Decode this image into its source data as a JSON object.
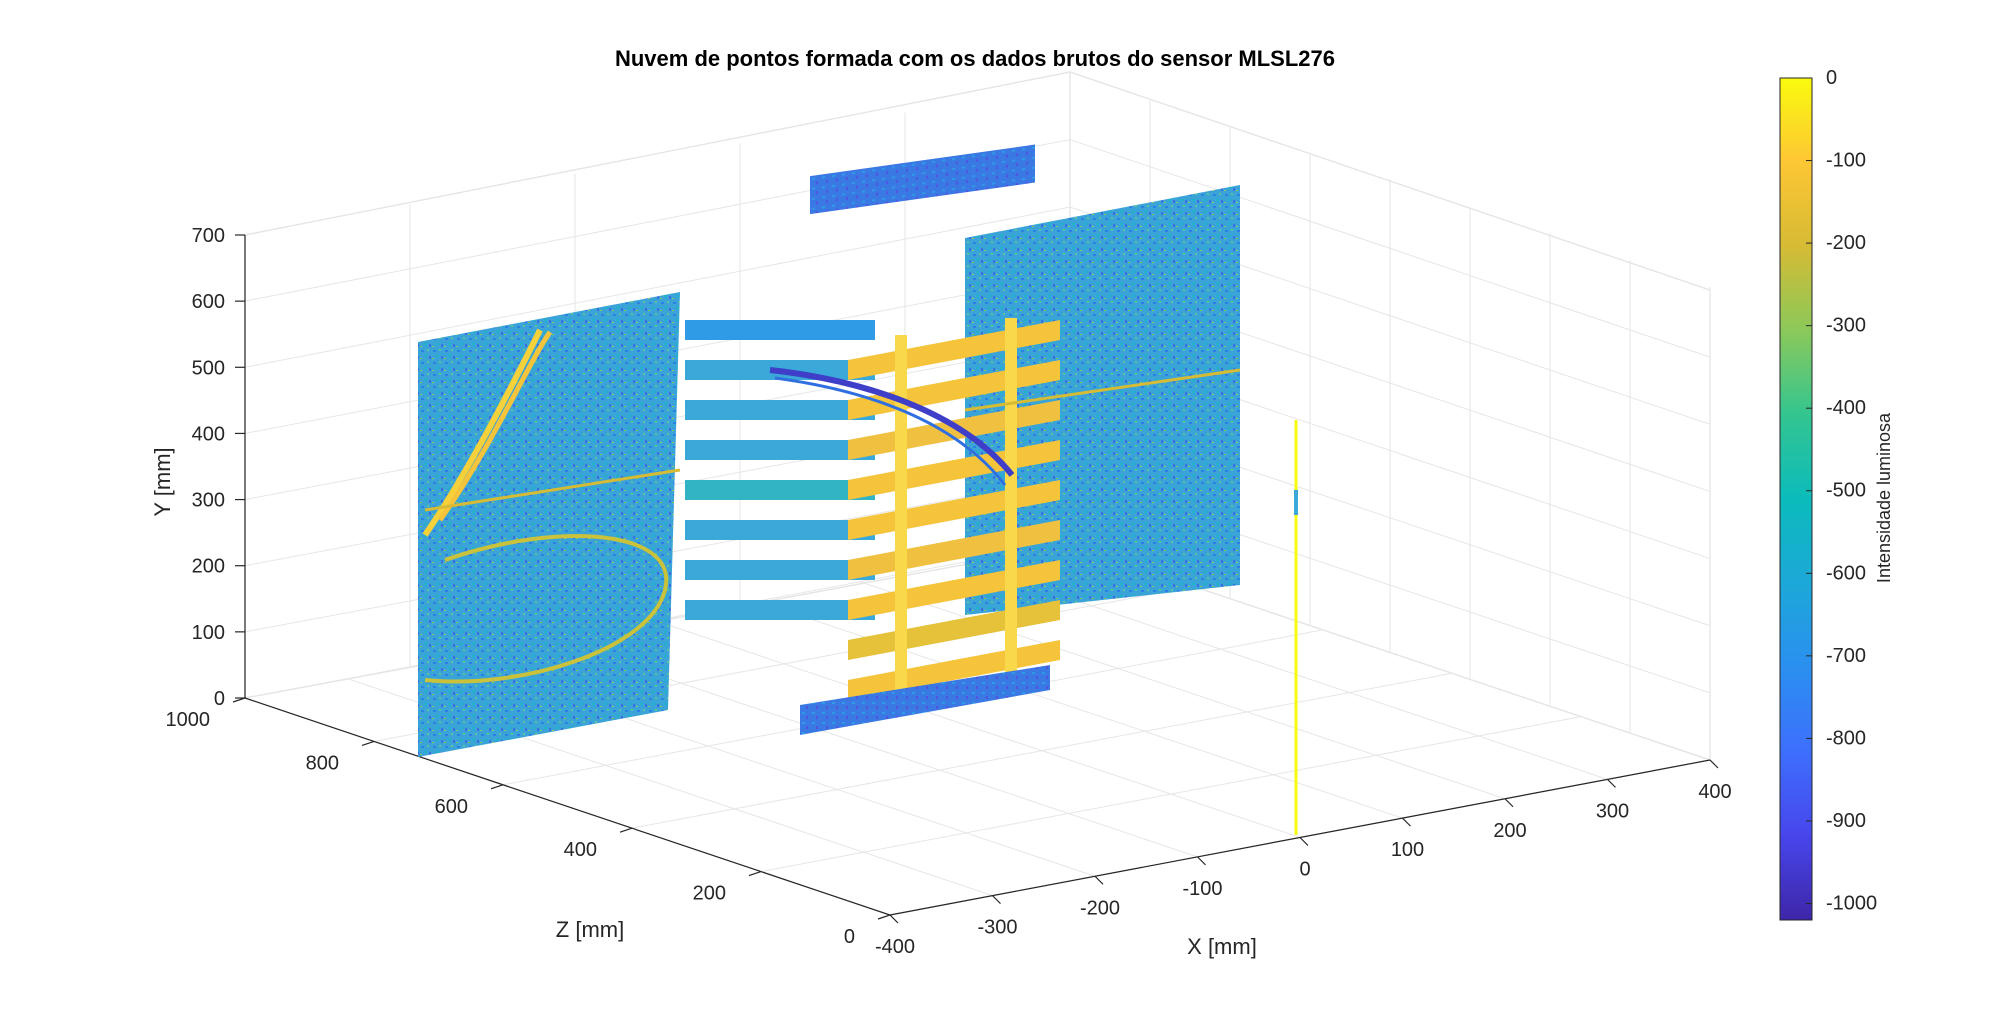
{
  "chart_data": {
    "type": "scatter",
    "title": "Nuvem de pontos formada com os dados brutos do sensor MLSL276",
    "xlabel": "X  [mm]",
    "ylabel": "Y  [mm]",
    "zlabel": "Z  [mm]",
    "xlim": [
      -400,
      400
    ],
    "ylim": [
      0,
      700
    ],
    "zlim": [
      0,
      1000
    ],
    "x_ticks": [
      "-400",
      "-300",
      "-200",
      "-100",
      "0",
      "100",
      "200",
      "300",
      "400"
    ],
    "y_ticks": [
      "0",
      "100",
      "200",
      "300",
      "400",
      "500",
      "600",
      "700"
    ],
    "z_ticks": [
      "0",
      "200",
      "400",
      "600",
      "800",
      "1000"
    ],
    "grid": true,
    "colorbar": {
      "label": "Intensidade luminosa",
      "range": [
        -1020,
        0
      ],
      "ticks": [
        "0",
        "-100",
        "-200",
        "-300",
        "-400",
        "-500",
        "-600",
        "-700",
        "-800",
        "-900",
        "-1000"
      ],
      "colormap": "parula"
    },
    "colors": {
      "dominant_cloud": "#3aa8d8",
      "highlight": "#f6c43a",
      "low_intensity": "#3b58d6"
    }
  }
}
